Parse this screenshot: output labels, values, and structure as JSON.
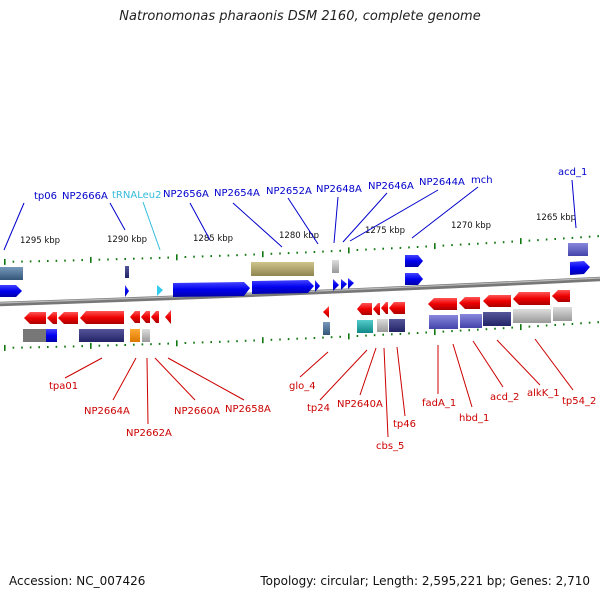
{
  "title": "Natronomonas pharaonis DSM 2160, complete genome",
  "footer": {
    "accession": "Accession: NC_007426",
    "summary": "Topology: circular; Length: 2,595,221 bp; Genes: 2,710"
  },
  "scale_labels": [
    "1295 kbp",
    "1290 kbp",
    "1285 kbp",
    "1280 kbp",
    "1275 kbp",
    "1270 kbp",
    "1265 kbp"
  ],
  "top_labels": [
    "tp06",
    "NP2666A",
    "tRNALeu2",
    "NP2656A",
    "NP2654A",
    "NP2652A",
    "NP2648A",
    "NP2646A",
    "NP2644A",
    "mch",
    "acd_1"
  ],
  "bottom_labels": [
    "tpa01",
    "NP2664A",
    "NP2662A",
    "NP2660A",
    "NP2658A",
    "glo_4",
    "tp24",
    "NP2640A",
    "cbs_5",
    "tp46",
    "fadA_1",
    "hbd_1",
    "acd_2",
    "alkK_1",
    "tp54_2"
  ],
  "colors": {
    "forward_strand": "#0000ee",
    "reverse_strand": "#ee0000",
    "trna": "#33ccee",
    "backbone": "#888888",
    "tick": "#117711",
    "top_label": "#0000cc",
    "bottom_label": "#cc0000"
  }
}
